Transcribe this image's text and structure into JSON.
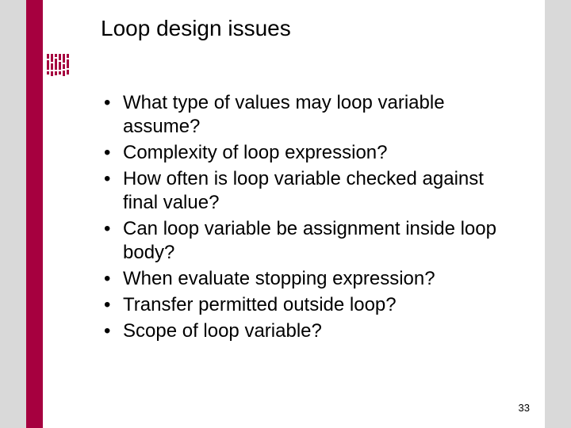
{
  "slide": {
    "title": "Loop design issues",
    "bullets": [
      "What type of values may loop variable assume?",
      "Complexity of loop expression?",
      "How often is loop variable checked against final value?",
      "Can loop variable be assignment inside loop body?",
      "When evaluate stopping expression?",
      "Transfer permitted outside loop?",
      "Scope of loop variable?"
    ],
    "page_number": "33"
  },
  "style": {
    "background_color": "#d9d9d9",
    "slide_color": "#ffffff",
    "accent_color": "#a6003f",
    "text_color": "#000000",
    "title_fontsize": 28,
    "bullet_fontsize": 24,
    "pagenum_fontsize": 13,
    "logo_bars": [
      [
        6,
        12,
        4
      ],
      [
        10,
        8,
        6
      ],
      [
        4,
        14,
        5
      ],
      [
        8,
        10,
        4
      ],
      [
        12,
        6,
        8
      ],
      [
        5,
        11,
        6
      ]
    ]
  }
}
